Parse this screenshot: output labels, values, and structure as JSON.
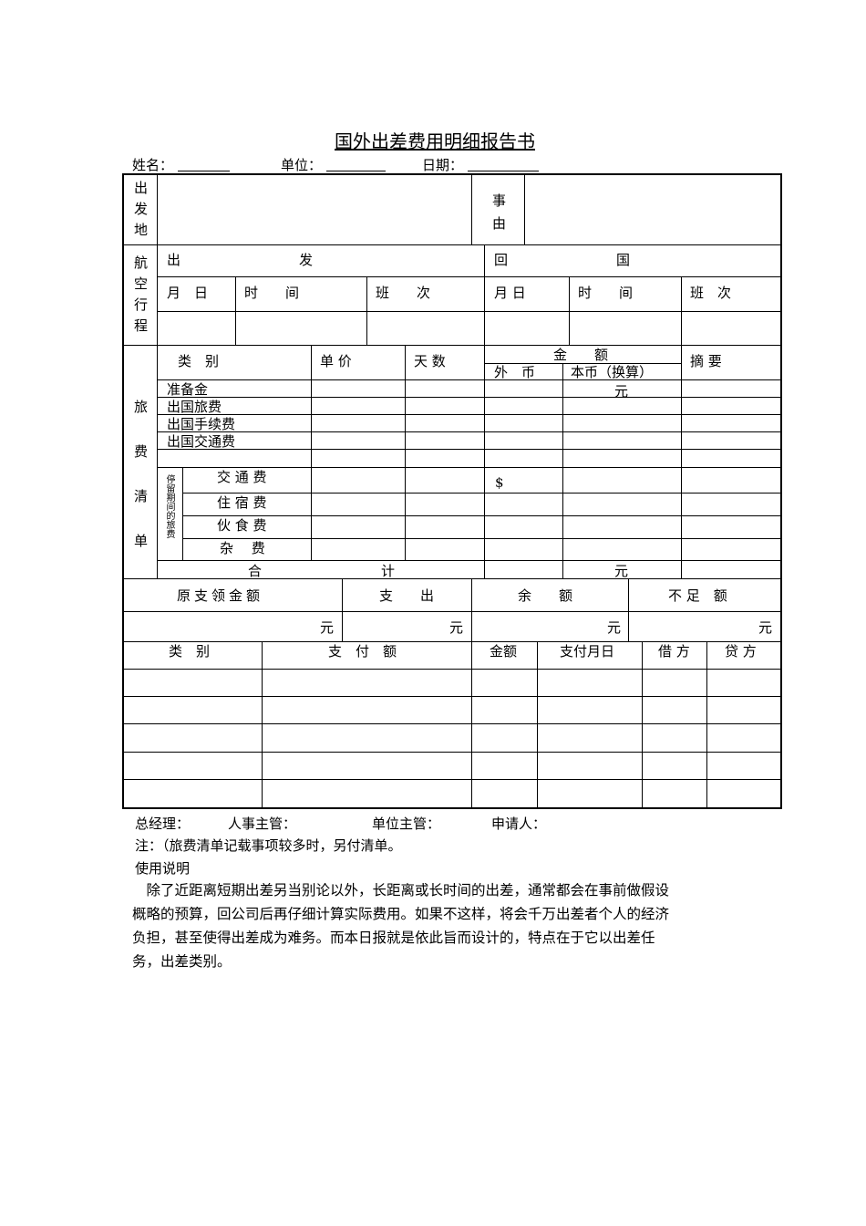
{
  "title": "国外出差费用明细报告书",
  "header": {
    "name_label": "姓名：",
    "unit_label": "单位：",
    "date_label": "日期："
  },
  "section1": {
    "departure_label": "出发地",
    "reason_label": "事由"
  },
  "flight": {
    "label": "航空行程",
    "depart": [
      "出",
      "发"
    ],
    "return": [
      "回",
      "国"
    ],
    "cols": [
      "月　日",
      "时　　间",
      "班　　次",
      "月 日",
      "时　　间",
      "班　次"
    ]
  },
  "expenses": {
    "label": "旅费清单",
    "head_category": "类　别",
    "head_price": "单 价",
    "head_days": "天 数",
    "head_amount": "金　　额",
    "head_foreign": "外　币",
    "head_local": "本币（换算）",
    "head_summary": "摘 要",
    "items": [
      "准备金",
      "出国旅费",
      "出国手续费",
      "出国交通费"
    ],
    "reserve_unit": "元",
    "stay_label": "停留期间的旅费",
    "stay_items": [
      "交 通 费",
      "住 宿 费",
      "伙 食 费",
      "杂　 费"
    ],
    "dollar": "$",
    "total_a": "合",
    "total_b": "计",
    "total_unit": "元"
  },
  "balance": {
    "headers": [
      "原支领金额",
      "支　　出",
      "余　　额",
      "不 足　额"
    ],
    "unit": "元"
  },
  "payment": {
    "headers": [
      "类　别",
      "支　付　额",
      "金额",
      "支付月日",
      "借 方",
      "贷 方"
    ]
  },
  "signatures": [
    "总经理：",
    "人事主管：",
    "单位主管：",
    "申请人："
  ],
  "note": "注：（旅费清单记载事项较多时，另付清单。",
  "usage_title": "使用说明",
  "usage_text": "　除了近距离短期出差另当别论以外，长距离或长时间的出差，通常都会在事前做假设概略的预算，回公司后再仔细计算实际费用。如果不这样，将会千万出差者个人的经济负担，甚至使得出差成为难务。而本日报就是依此旨而设计的，特点在于它以出差任务，出差类别。"
}
